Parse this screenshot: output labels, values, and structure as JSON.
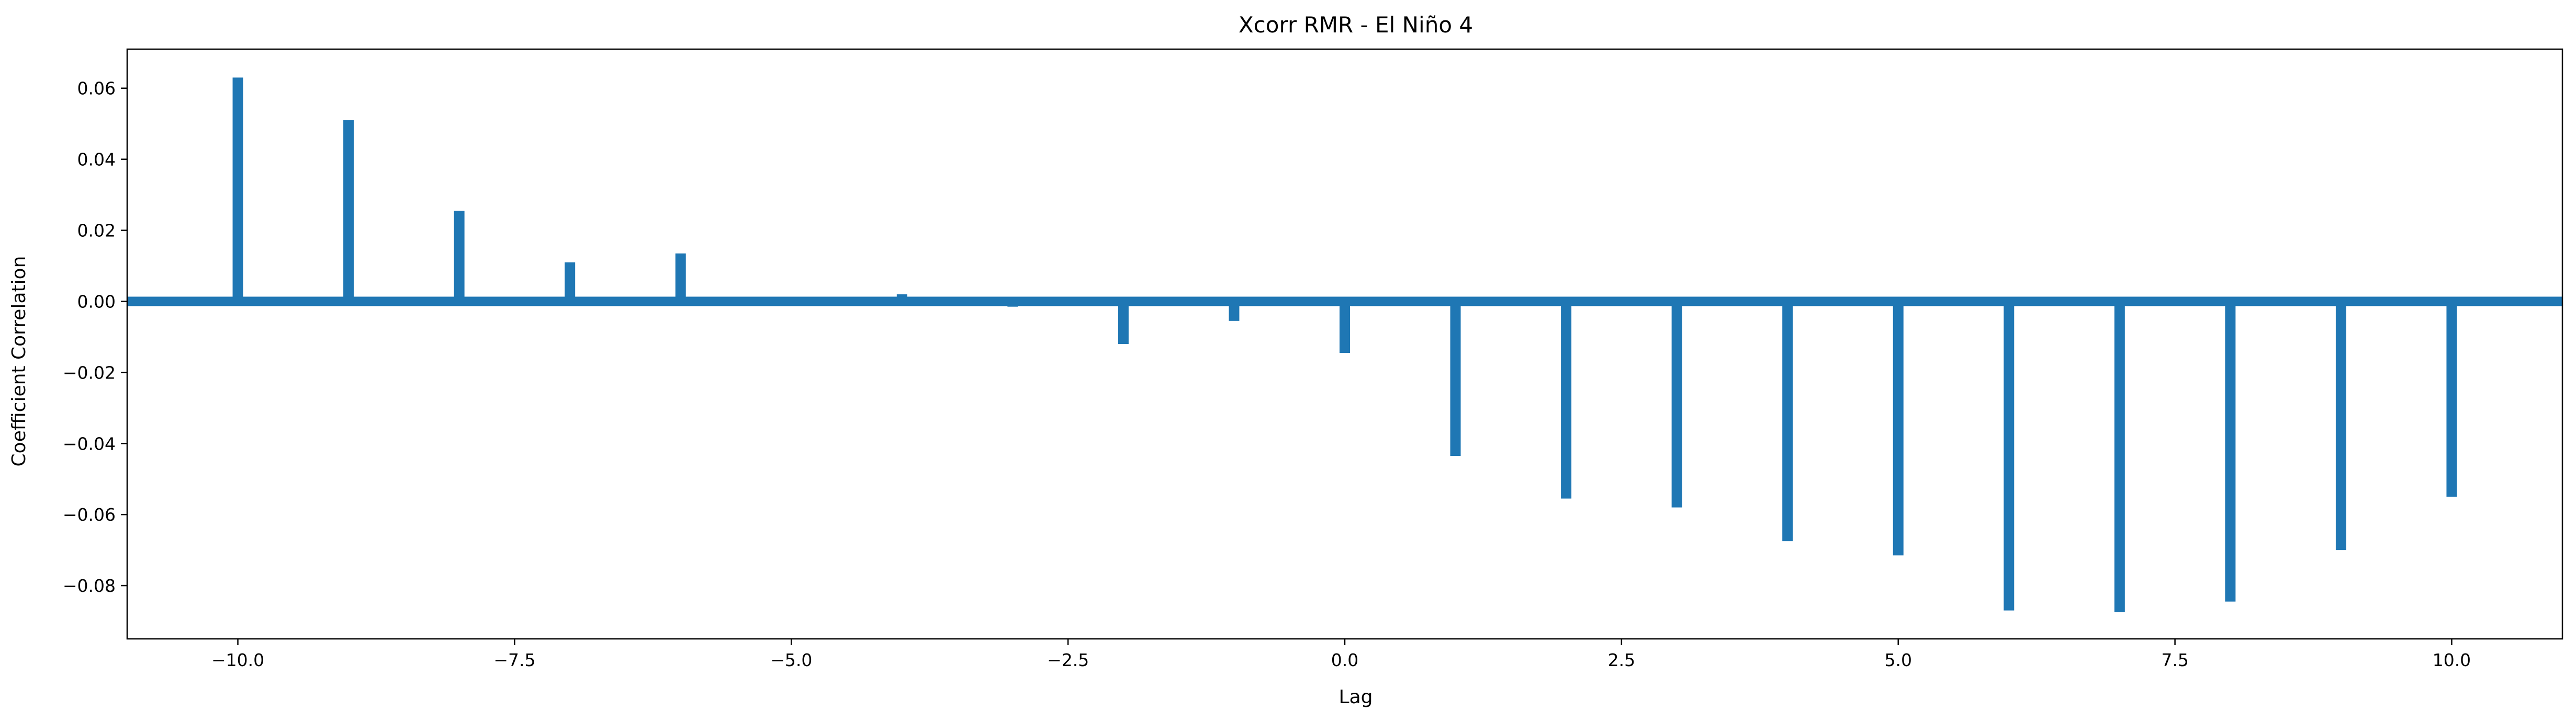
{
  "chart_data": {
    "type": "bar",
    "title": "Xcorr RMR - El Niño 4",
    "xlabel": "Lag",
    "ylabel": "Coefficient Correlation",
    "xlim": [
      -11,
      11
    ],
    "ylim": [
      -0.095,
      0.071
    ],
    "grid": false,
    "legend": "none",
    "color": "#1f77b4",
    "x": [
      -10,
      -9,
      -8,
      -7,
      -6,
      -5,
      -4,
      -3,
      -2,
      -1,
      0,
      1,
      2,
      3,
      4,
      5,
      6,
      7,
      8,
      9,
      10
    ],
    "values": [
      0.063,
      0.051,
      0.0255,
      0.011,
      0.0135,
      0.0012,
      0.002,
      -0.0015,
      -0.012,
      -0.0055,
      -0.0145,
      -0.0435,
      -0.0555,
      -0.058,
      -0.0675,
      -0.0715,
      -0.087,
      -0.0875,
      -0.0845,
      -0.07,
      -0.055
    ],
    "zero_line": true,
    "xticks": [
      -10.0,
      -7.5,
      -5.0,
      -2.5,
      0.0,
      2.5,
      5.0,
      7.5,
      10.0
    ],
    "xtick_labels": [
      "−10.0",
      "−7.5",
      "−5.0",
      "−2.5",
      "0.0",
      "2.5",
      "5.0",
      "7.5",
      "10.0"
    ],
    "yticks": [
      0.06,
      0.04,
      0.02,
      0.0,
      -0.02,
      -0.04,
      -0.06,
      -0.08
    ],
    "ytick_labels": [
      "0.06",
      "0.04",
      "0.02",
      "0.00",
      "−0.02",
      "−0.04",
      "−0.06",
      "−0.08"
    ]
  }
}
